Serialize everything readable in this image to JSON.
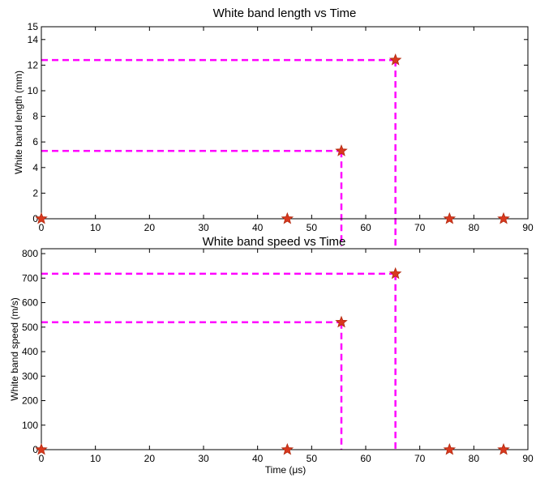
{
  "chart_data": [
    {
      "type": "scatter",
      "title": "White band length vs Time",
      "xlabel": "",
      "ylabel": "White band length (mm)",
      "xlim": [
        0,
        90
      ],
      "ylim": [
        0,
        15
      ],
      "xticks": [
        0,
        10,
        20,
        30,
        40,
        50,
        60,
        70,
        80,
        90
      ],
      "yticks": [
        0,
        2,
        4,
        6,
        8,
        10,
        12,
        14,
        15
      ],
      "grid": false,
      "series": [
        {
          "marker": "star",
          "color": "#d9381e",
          "edgecolor": "#b22a10",
          "x": [
            0,
            45.5,
            55.5,
            65.5,
            75.5,
            85.5
          ],
          "y": [
            0,
            0,
            5.3,
            12.4,
            0,
            0
          ]
        }
      ],
      "guides": [
        {
          "color": "#ff00ff",
          "style": "dashed",
          "x": 55.5,
          "y": 5.3
        },
        {
          "color": "#ff00ff",
          "style": "dashed",
          "x": 65.5,
          "y": 12.4
        }
      ]
    },
    {
      "type": "scatter",
      "title": "White band speed vs Time",
      "xlabel": "Time (μs)",
      "ylabel": "White band speed (m/s)",
      "xlim": [
        0,
        90
      ],
      "ylim": [
        0,
        820
      ],
      "xticks": [
        0,
        10,
        20,
        30,
        40,
        50,
        60,
        70,
        80,
        90
      ],
      "yticks": [
        0,
        100,
        200,
        300,
        400,
        500,
        600,
        700,
        800
      ],
      "grid": false,
      "series": [
        {
          "marker": "star",
          "color": "#d9381e",
          "edgecolor": "#b22a10",
          "x": [
            0,
            45.5,
            55.5,
            65.5,
            75.5,
            85.5
          ],
          "y": [
            0,
            0,
            520,
            718,
            0,
            0
          ]
        }
      ],
      "guides": [
        {
          "color": "#ff00ff",
          "style": "dashed",
          "x": 55.5,
          "y": 520
        },
        {
          "color": "#ff00ff",
          "style": "dashed",
          "x": 65.5,
          "y": 718
        }
      ]
    }
  ]
}
